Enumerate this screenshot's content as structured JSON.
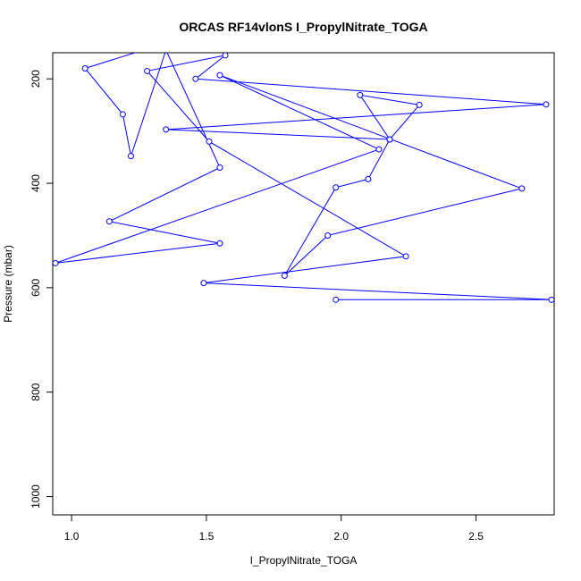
{
  "chart_data": {
    "type": "line",
    "title": "ORCAS RF14vlonS I_PropylNitrate_TOGA",
    "xlabel": "I_PropylNitrate_TOGA",
    "ylabel": "Pressure (mbar)",
    "xlim": [
      0.93,
      2.79
    ],
    "ylim": [
      1035,
      150
    ],
    "y_reversed": true,
    "xticks": [
      1.0,
      1.5,
      2.0,
      2.5
    ],
    "yticks": [
      200,
      400,
      600,
      800,
      1000
    ],
    "grid": false,
    "series": [
      {
        "color": "#0000ff",
        "marker": "open-circle",
        "x": [
          1.98,
          2.78,
          1.49,
          2.24,
          1.51,
          1.28,
          1.57,
          1.46,
          2.76,
          1.35,
          2.18,
          2.07,
          2.29,
          2.18,
          2.1,
          1.98,
          1.79,
          1.95,
          2.67,
          1.55,
          2.14,
          0.94,
          1.55,
          1.14,
          1.55,
          1.35,
          1.22,
          1.19,
          1.05,
          1.45
        ],
        "y": [
          623,
          623,
          591,
          540,
          320,
          185,
          155,
          200,
          249,
          297,
          316,
          231,
          250,
          316,
          392,
          408,
          577,
          500,
          410,
          193,
          335,
          553,
          515,
          473,
          370,
          145,
          348,
          268,
          180,
          115
        ]
      }
    ]
  }
}
